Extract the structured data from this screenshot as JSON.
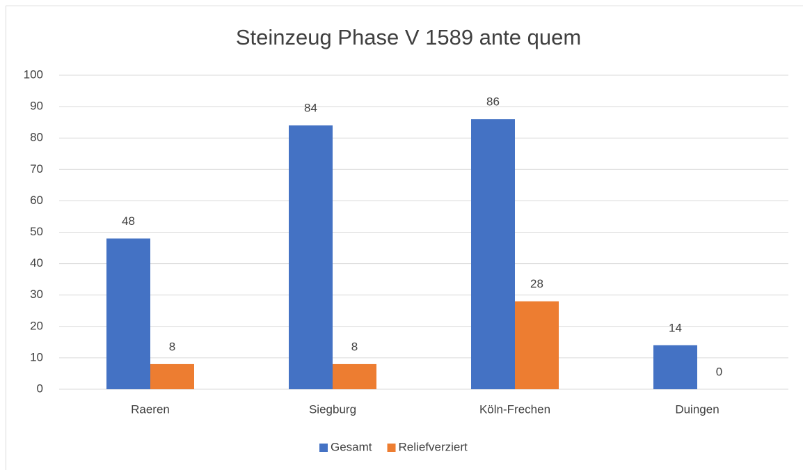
{
  "chart_data": {
    "type": "bar",
    "title": "Steinzeug Phase V 1589 ante quem",
    "categories": [
      "Raeren",
      "Siegburg",
      "Köln-Frechen",
      "Duingen"
    ],
    "series": [
      {
        "name": "Gesamt",
        "color": "#4472c4",
        "values": [
          48,
          84,
          86,
          14
        ]
      },
      {
        "name": "Reliefverziert",
        "color": "#ed7d31",
        "values": [
          8,
          8,
          28,
          0
        ]
      }
    ],
    "ylim": [
      0,
      100
    ],
    "yticks": [
      0,
      10,
      20,
      30,
      40,
      50,
      60,
      70,
      80,
      90,
      100
    ],
    "grid": true,
    "legend": "bottom",
    "data_labels": true
  }
}
